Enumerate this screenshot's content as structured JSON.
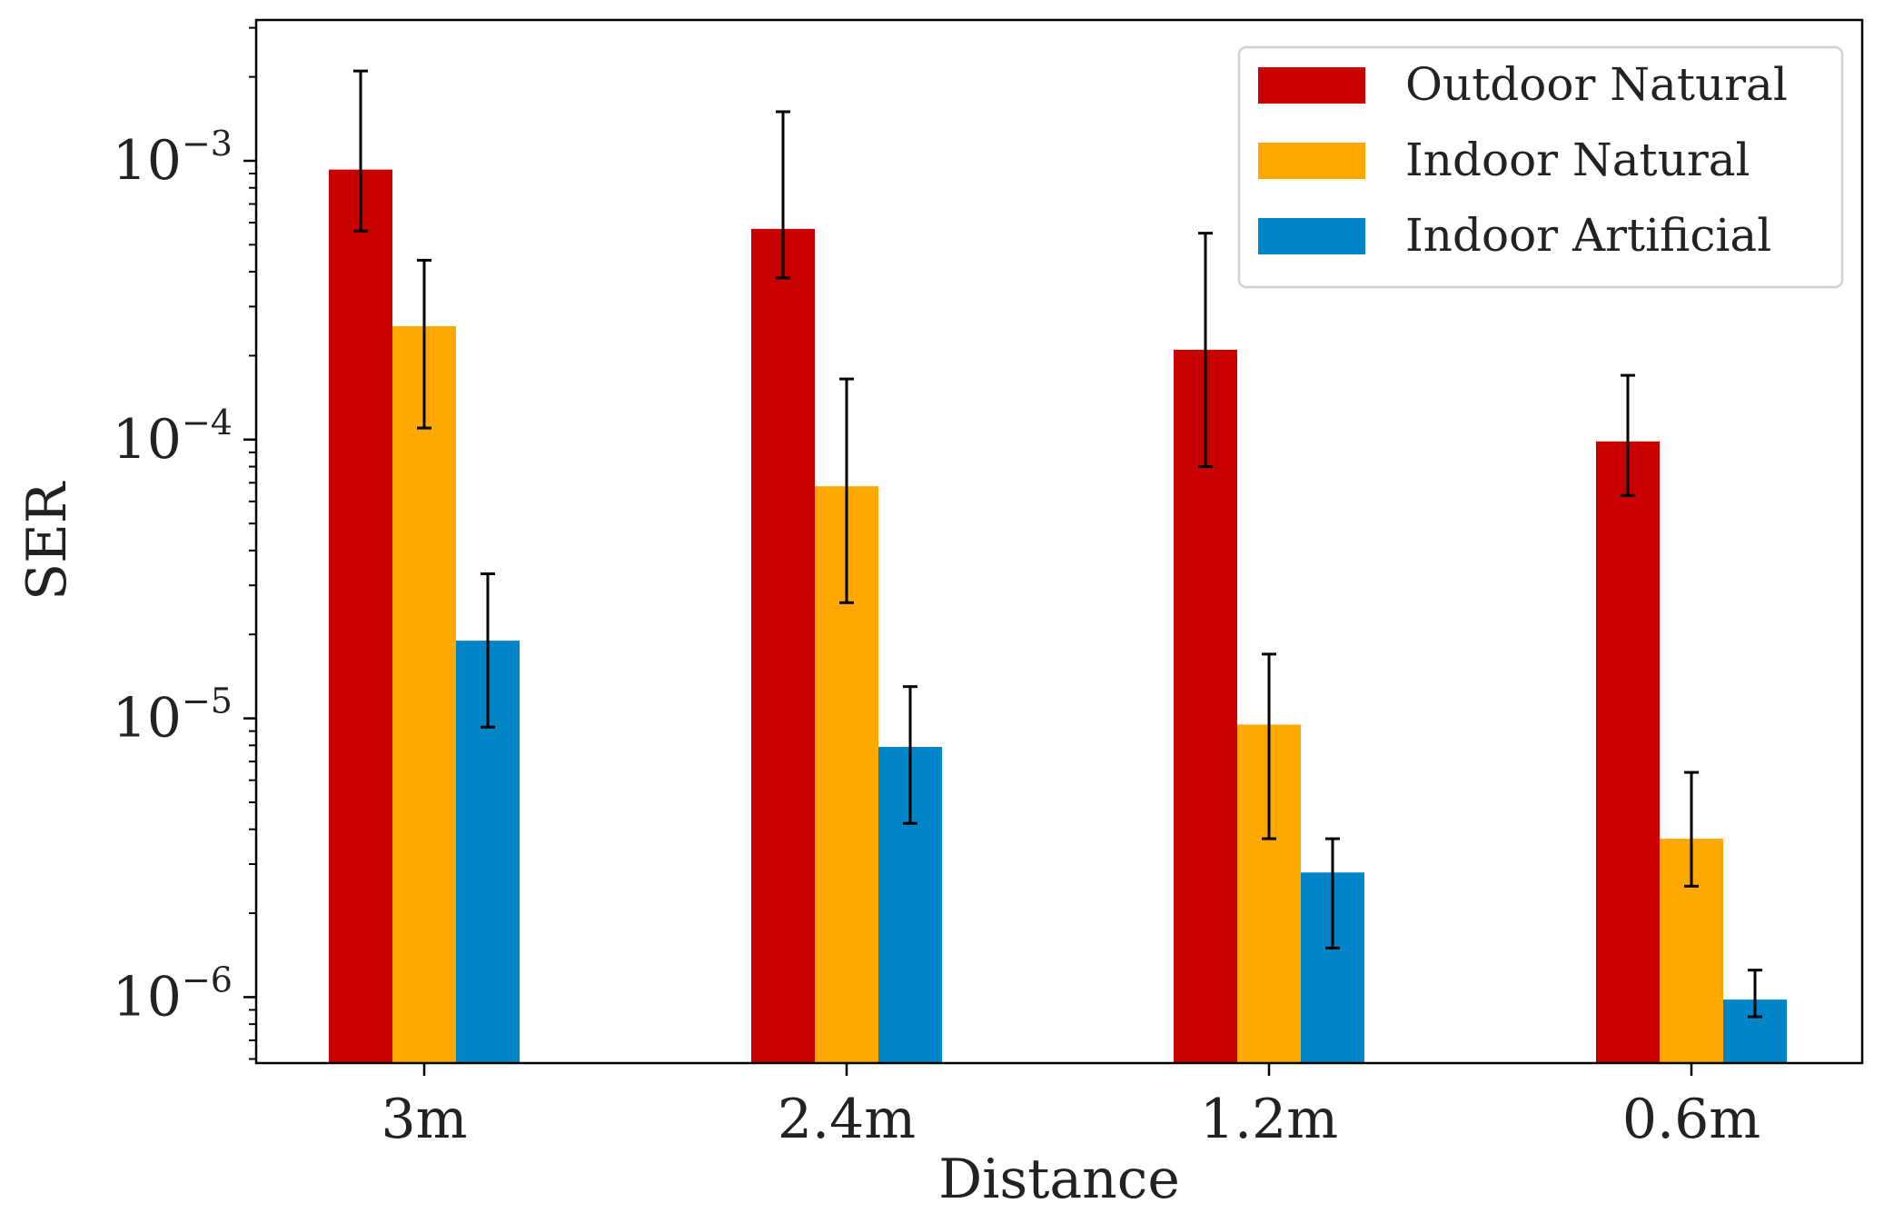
{
  "chart_data": {
    "type": "bar",
    "title": "",
    "xlabel": "Distance",
    "ylabel": "SER",
    "yscale": "log",
    "ylim": [
      5.8e-07,
      0.0032
    ],
    "categories": [
      "3m",
      "2.4m",
      "1.2m",
      "0.6m"
    ],
    "yticks": [
      {
        "base": "10",
        "exp": "−3",
        "value": 0.001
      },
      {
        "base": "10",
        "exp": "−4",
        "value": 0.0001
      },
      {
        "base": "10",
        "exp": "−5",
        "value": 1e-05
      },
      {
        "base": "10",
        "exp": "−6",
        "value": 1e-06
      }
    ],
    "series": [
      {
        "name": "Outdoor Natural",
        "color": "#c80000",
        "values": [
          0.00093,
          0.00057,
          0.00021,
          9.85e-05
        ],
        "err_low": [
          0.00056,
          0.00038,
          8e-05,
          6.3e-05
        ],
        "err_high": [
          0.0021,
          0.0015,
          0.00055,
          0.00017
        ]
      },
      {
        "name": "Indoor Natural",
        "color": "#ffa800",
        "values": [
          0.000255,
          6.8e-05,
          9.5e-06,
          3.7e-06
        ],
        "err_low": [
          0.00011,
          2.6e-05,
          3.7e-06,
          2.5e-06
        ],
        "err_high": [
          0.00044,
          0.000165,
          1.7e-05,
          6.4e-06
        ]
      },
      {
        "name": "Indoor Artificial",
        "color": "#0085c8",
        "values": [
          1.9e-05,
          7.9e-06,
          2.8e-06,
          9.8e-07
        ],
        "err_low": [
          9.3e-06,
          4.2e-06,
          1.5e-06,
          8.5e-07
        ],
        "err_high": [
          3.3e-05,
          1.3e-05,
          3.7e-06,
          1.25e-06
        ]
      }
    ],
    "legend": "top-right",
    "grid": false
  }
}
